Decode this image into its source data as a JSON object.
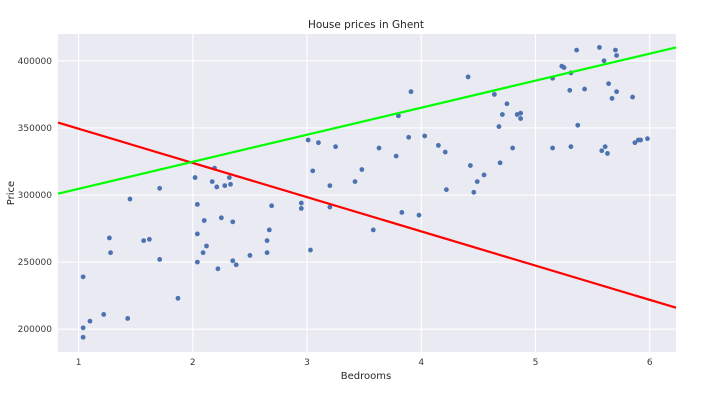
{
  "chart_data": {
    "type": "scatter",
    "title": "House prices in Ghent",
    "xlabel": "Bedrooms",
    "ylabel": "Price",
    "xlim": [
      0.82,
      6.23
    ],
    "ylim": [
      183000,
      420000
    ],
    "xticks": [
      1,
      2,
      3,
      4,
      5,
      6
    ],
    "xtick_labels": [
      "1",
      "2",
      "3",
      "4",
      "5",
      "6"
    ],
    "yticks": [
      200000,
      250000,
      300000,
      350000,
      400000
    ],
    "ytick_labels": [
      "200000",
      "250000",
      "300000",
      "350000",
      "400000"
    ],
    "grid": true,
    "legend": "none",
    "colors": {
      "background": "#eaeaf2",
      "points": "#4c72b0",
      "line_1": "#ff0000",
      "line_2": "#00ff00"
    },
    "points": [
      {
        "x": 1.04,
        "y": 239000
      },
      {
        "x": 1.04,
        "y": 201000
      },
      {
        "x": 1.04,
        "y": 194000
      },
      {
        "x": 1.1,
        "y": 206000
      },
      {
        "x": 1.22,
        "y": 211000
      },
      {
        "x": 1.27,
        "y": 268000
      },
      {
        "x": 1.28,
        "y": 257000
      },
      {
        "x": 1.43,
        "y": 208000
      },
      {
        "x": 1.45,
        "y": 297000
      },
      {
        "x": 1.57,
        "y": 266000
      },
      {
        "x": 1.62,
        "y": 267000
      },
      {
        "x": 1.71,
        "y": 305000
      },
      {
        "x": 1.71,
        "y": 252000
      },
      {
        "x": 1.87,
        "y": 223000
      },
      {
        "x": 2.02,
        "y": 313000
      },
      {
        "x": 2.04,
        "y": 293000
      },
      {
        "x": 2.04,
        "y": 271000
      },
      {
        "x": 2.04,
        "y": 250000
      },
      {
        "x": 2.09,
        "y": 257000
      },
      {
        "x": 2.1,
        "y": 281000
      },
      {
        "x": 2.12,
        "y": 262000
      },
      {
        "x": 2.17,
        "y": 310000
      },
      {
        "x": 2.19,
        "y": 320000
      },
      {
        "x": 2.21,
        "y": 306000
      },
      {
        "x": 2.22,
        "y": 245000
      },
      {
        "x": 2.25,
        "y": 283000
      },
      {
        "x": 2.28,
        "y": 307000
      },
      {
        "x": 2.32,
        "y": 313000
      },
      {
        "x": 2.33,
        "y": 308000
      },
      {
        "x": 2.35,
        "y": 280000
      },
      {
        "x": 2.35,
        "y": 251000
      },
      {
        "x": 2.38,
        "y": 248000
      },
      {
        "x": 2.5,
        "y": 255000
      },
      {
        "x": 2.65,
        "y": 266000
      },
      {
        "x": 2.65,
        "y": 257000
      },
      {
        "x": 2.67,
        "y": 274000
      },
      {
        "x": 2.69,
        "y": 292000
      },
      {
        "x": 2.95,
        "y": 294000
      },
      {
        "x": 2.95,
        "y": 290000
      },
      {
        "x": 3.01,
        "y": 341000
      },
      {
        "x": 3.03,
        "y": 259000
      },
      {
        "x": 3.05,
        "y": 318000
      },
      {
        "x": 3.1,
        "y": 339000
      },
      {
        "x": 3.2,
        "y": 307000
      },
      {
        "x": 3.2,
        "y": 291000
      },
      {
        "x": 3.25,
        "y": 336000
      },
      {
        "x": 3.42,
        "y": 310000
      },
      {
        "x": 3.48,
        "y": 319000
      },
      {
        "x": 3.58,
        "y": 274000
      },
      {
        "x": 3.63,
        "y": 335000
      },
      {
        "x": 3.78,
        "y": 329000
      },
      {
        "x": 3.8,
        "y": 359000
      },
      {
        "x": 3.83,
        "y": 287000
      },
      {
        "x": 3.89,
        "y": 343000
      },
      {
        "x": 3.91,
        "y": 377000
      },
      {
        "x": 3.98,
        "y": 285000
      },
      {
        "x": 4.03,
        "y": 344000
      },
      {
        "x": 4.15,
        "y": 337000
      },
      {
        "x": 4.21,
        "y": 332000
      },
      {
        "x": 4.22,
        "y": 304000
      },
      {
        "x": 4.41,
        "y": 388000
      },
      {
        "x": 4.43,
        "y": 322000
      },
      {
        "x": 4.46,
        "y": 302000
      },
      {
        "x": 4.49,
        "y": 310000
      },
      {
        "x": 4.55,
        "y": 315000
      },
      {
        "x": 4.64,
        "y": 375000
      },
      {
        "x": 4.68,
        "y": 351000
      },
      {
        "x": 4.69,
        "y": 324000
      },
      {
        "x": 4.71,
        "y": 360000
      },
      {
        "x": 4.75,
        "y": 368000
      },
      {
        "x": 4.8,
        "y": 335000
      },
      {
        "x": 4.84,
        "y": 360000
      },
      {
        "x": 4.87,
        "y": 361000
      },
      {
        "x": 4.87,
        "y": 357000
      },
      {
        "x": 5.15,
        "y": 387000
      },
      {
        "x": 5.15,
        "y": 335000
      },
      {
        "x": 5.23,
        "y": 396000
      },
      {
        "x": 5.25,
        "y": 395000
      },
      {
        "x": 5.3,
        "y": 378000
      },
      {
        "x": 5.31,
        "y": 391000
      },
      {
        "x": 5.31,
        "y": 336000
      },
      {
        "x": 5.36,
        "y": 408000
      },
      {
        "x": 5.37,
        "y": 352000
      },
      {
        "x": 5.43,
        "y": 379000
      },
      {
        "x": 5.56,
        "y": 410000
      },
      {
        "x": 5.58,
        "y": 333000
      },
      {
        "x": 5.6,
        "y": 400000
      },
      {
        "x": 5.61,
        "y": 336000
      },
      {
        "x": 5.63,
        "y": 331000
      },
      {
        "x": 5.64,
        "y": 383000
      },
      {
        "x": 5.67,
        "y": 372000
      },
      {
        "x": 5.7,
        "y": 408000
      },
      {
        "x": 5.71,
        "y": 404000
      },
      {
        "x": 5.71,
        "y": 377000
      },
      {
        "x": 5.85,
        "y": 373000
      },
      {
        "x": 5.87,
        "y": 339000
      },
      {
        "x": 5.9,
        "y": 341000
      },
      {
        "x": 5.92,
        "y": 341000
      },
      {
        "x": 5.98,
        "y": 342000
      }
    ],
    "lines": [
      {
        "color": "#ff0000",
        "x": [
          0.82,
          6.23
        ],
        "y": [
          354000,
          216000
        ]
      },
      {
        "color": "#00ff00",
        "x": [
          0.82,
          6.23
        ],
        "y": [
          301000,
          410000
        ]
      }
    ]
  }
}
